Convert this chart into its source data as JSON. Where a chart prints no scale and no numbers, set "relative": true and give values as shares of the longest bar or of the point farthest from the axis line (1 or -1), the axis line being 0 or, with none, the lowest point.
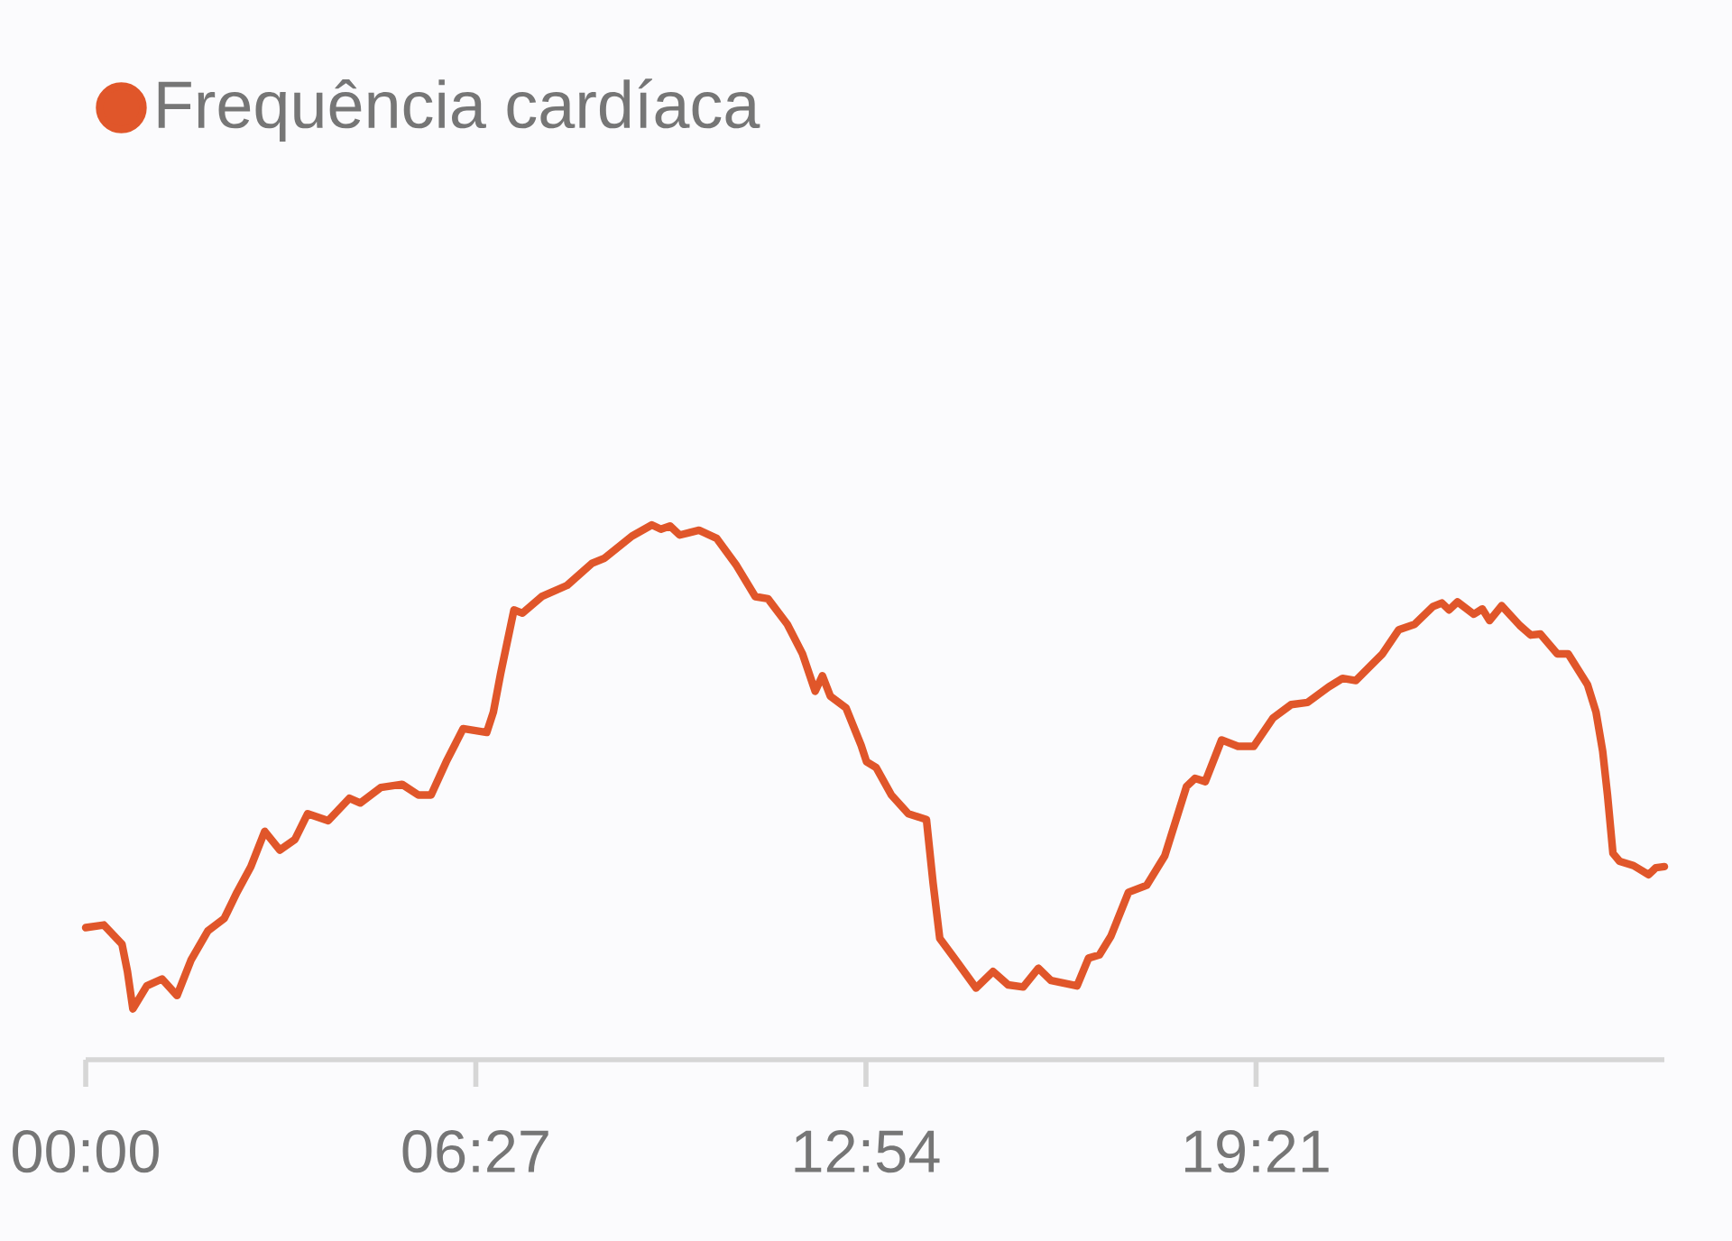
{
  "chart_data": {
    "type": "line",
    "relative": true,
    "legend": "top left",
    "tick_labels": "x",
    "marker": "none",
    "line_style": "solid",
    "xlim": [
      0,
      26.1
    ],
    "xticks": [
      {
        "value": 0,
        "label": "00:00"
      },
      {
        "value": 6.45,
        "label": "06:27"
      },
      {
        "value": 12.9,
        "label": "12:54"
      },
      {
        "value": 19.35,
        "label": "19:21"
      }
    ],
    "series": [
      {
        "name": "Frequência cardíaca",
        "color": "#e0562a",
        "x": [
          0,
          0.3,
          0.6,
          0.69,
          0.78,
          1.01,
          1.26,
          1.51,
          1.74,
          2.02,
          2.29,
          2.5,
          2.73,
          2.96,
          3.21,
          3.46,
          3.67,
          4.01,
          4.36,
          4.54,
          4.88,
          5.23,
          5.5,
          5.71,
          5.96,
          6.24,
          6.63,
          6.74,
          6.86,
          7.08,
          7.22,
          7.54,
          7.96,
          8.37,
          8.58,
          9.03,
          9.36,
          9.51,
          9.66,
          9.82,
          10.14,
          10.43,
          10.76,
          11.07,
          11.28,
          11.6,
          11.85,
          12.06,
          12.18,
          12.31,
          12.57,
          12.82,
          12.91,
          13.07,
          13.32,
          13.6,
          13.9,
          14.01,
          14.12,
          14.36,
          14.72,
          15.0,
          15.25,
          15.5,
          15.75,
          15.96,
          16.39,
          16.58,
          16.76,
          16.95,
          17.24,
          17.54,
          17.84,
          18.07,
          18.2,
          18.34,
          18.51,
          18.78,
          19.05,
          19.31,
          19.63,
          19.93,
          20.2,
          20.55,
          20.78,
          21.0,
          21.44,
          21.71,
          21.97,
          22.27,
          22.42,
          22.54,
          22.68,
          22.95,
          23.09,
          23.21,
          23.41,
          23.71,
          23.89,
          24.05,
          24.33,
          24.51,
          24.83,
          24.97,
          25.08,
          25.16,
          25.25,
          25.36,
          25.59,
          25.84,
          25.96,
          26.1
        ],
        "values": [
          0.247,
          0.252,
          0.216,
          0.165,
          0.095,
          0.138,
          0.151,
          0.12,
          0.186,
          0.241,
          0.264,
          0.313,
          0.361,
          0.427,
          0.392,
          0.412,
          0.46,
          0.447,
          0.489,
          0.48,
          0.509,
          0.515,
          0.495,
          0.495,
          0.557,
          0.619,
          0.612,
          0.65,
          0.722,
          0.841,
          0.835,
          0.866,
          0.887,
          0.928,
          0.938,
          0.979,
          1,
          0.992,
          0.998,
          0.981,
          0.99,
          0.975,
          0.924,
          0.866,
          0.862,
          0.814,
          0.759,
          0.689,
          0.718,
          0.68,
          0.658,
          0.588,
          0.557,
          0.546,
          0.495,
          0.46,
          0.449,
          0.33,
          0.227,
          0.19,
          0.134,
          0.165,
          0.14,
          0.136,
          0.171,
          0.148,
          0.138,
          0.19,
          0.196,
          0.231,
          0.313,
          0.326,
          0.381,
          0.464,
          0.511,
          0.526,
          0.52,
          0.598,
          0.586,
          0.586,
          0.639,
          0.664,
          0.668,
          0.697,
          0.713,
          0.709,
          0.759,
          0.804,
          0.814,
          0.847,
          0.854,
          0.841,
          0.856,
          0.833,
          0.843,
          0.821,
          0.849,
          0.812,
          0.794,
          0.796,
          0.759,
          0.759,
          0.701,
          0.65,
          0.577,
          0.495,
          0.386,
          0.371,
          0.363,
          0.346,
          0.359,
          0.361
        ]
      }
    ]
  }
}
